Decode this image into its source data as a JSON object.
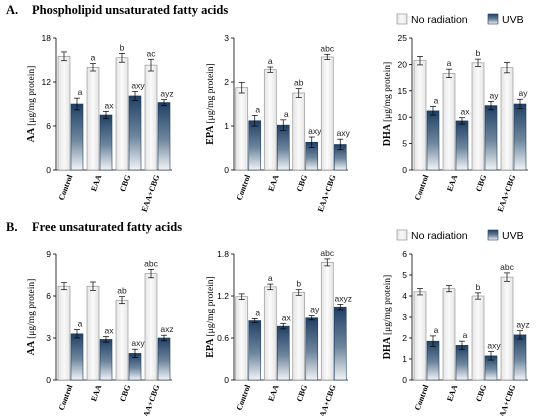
{
  "sections": [
    {
      "label": "A.",
      "title": "Phospholipid unsaturated fatty acids"
    },
    {
      "label": "B.",
      "title": "Free unsaturated fatty acids"
    }
  ],
  "legend": [
    {
      "name": "No radiation",
      "color": "#ececec"
    },
    {
      "name": "UVB",
      "color": "#1f3f63"
    }
  ],
  "chart_data": [
    {
      "type": "bar",
      "panel": "A",
      "ylabel_bold": "AA",
      "ylabel_unit": "[μg/mg protein]",
      "categories": [
        "Control",
        "EAA",
        "CBG",
        "EAA+CBG"
      ],
      "ylim": [
        0,
        18
      ],
      "yticks": [
        "0",
        "6",
        "12",
        "18"
      ],
      "series": [
        {
          "name": "No radiation",
          "values": [
            15.5,
            14.0,
            15.3,
            14.3
          ],
          "errors": [
            0.6,
            0.5,
            0.6,
            0.8
          ],
          "labels": [
            "",
            "a",
            "b",
            "ac"
          ]
        },
        {
          "name": "UVB",
          "values": [
            9.0,
            7.5,
            10.1,
            9.2
          ],
          "errors": [
            0.8,
            0.5,
            0.6,
            0.4
          ],
          "labels": [
            "a",
            "ax",
            "axy",
            "ayz"
          ]
        }
      ]
    },
    {
      "type": "bar",
      "panel": "A",
      "ylabel_bold": "EPA",
      "ylabel_unit": "[μg/mg protein]",
      "categories": [
        "Control",
        "EAA",
        "CBG",
        "EAA+CBG"
      ],
      "ylim": [
        0,
        3
      ],
      "yticks": [
        "0",
        "1",
        "2",
        "3"
      ],
      "series": [
        {
          "name": "No radiation",
          "values": [
            1.87,
            2.28,
            1.75,
            2.57
          ],
          "errors": [
            0.12,
            0.06,
            0.1,
            0.06
          ],
          "labels": [
            "",
            "a",
            "ab",
            "abc"
          ]
        },
        {
          "name": "UVB",
          "values": [
            1.12,
            1.02,
            0.63,
            0.58
          ],
          "errors": [
            0.12,
            0.12,
            0.12,
            0.12
          ],
          "labels": [
            "a",
            "a",
            "axy",
            "axy"
          ]
        }
      ]
    },
    {
      "type": "bar",
      "panel": "A",
      "ylabel_bold": "DHA",
      "ylabel_unit": "[μg/mg protein]",
      "categories": [
        "Control",
        "EAA",
        "CBG",
        "EAA+CBG"
      ],
      "ylim": [
        0,
        25
      ],
      "yticks": [
        "0",
        "5",
        "10",
        "15",
        "20",
        "25"
      ],
      "series": [
        {
          "name": "No radiation",
          "values": [
            20.7,
            18.3,
            20.3,
            19.4
          ],
          "errors": [
            0.8,
            0.8,
            0.7,
            1.0
          ],
          "labels": [
            "",
            "a",
            "b",
            ""
          ]
        },
        {
          "name": "UVB",
          "values": [
            11.2,
            9.3,
            12.2,
            12.5
          ],
          "errors": [
            0.8,
            0.6,
            0.8,
            0.9
          ],
          "labels": [
            "a",
            "ax",
            "ay",
            "ay"
          ]
        }
      ]
    },
    {
      "type": "bar",
      "panel": "B",
      "ylabel_bold": "AA",
      "ylabel_unit": "[μg/mg protein]",
      "categories": [
        "Control",
        "EAA",
        "CBG",
        "EAA+CBG"
      ],
      "ylim": [
        0,
        9
      ],
      "yticks": [
        "0",
        "3",
        "6",
        "9"
      ],
      "series": [
        {
          "name": "No radiation",
          "values": [
            6.7,
            6.7,
            5.7,
            7.6
          ],
          "errors": [
            0.25,
            0.3,
            0.25,
            0.3
          ],
          "labels": [
            "",
            "",
            "ab",
            "abc"
          ]
        },
        {
          "name": "UVB",
          "values": [
            3.3,
            2.9,
            1.9,
            3.0
          ],
          "errors": [
            0.3,
            0.2,
            0.3,
            0.2
          ],
          "labels": [
            "a",
            "ax",
            "axy",
            "axz"
          ]
        }
      ]
    },
    {
      "type": "bar",
      "panel": "B",
      "ylabel_bold": "EPA",
      "ylabel_unit": "[μg/mg protein]",
      "categories": [
        "Control",
        "EAA",
        "CBG",
        "EAA+CBG"
      ],
      "ylim": [
        0,
        1.8
      ],
      "yticks": [
        "0",
        "0.6",
        "1.2",
        "1.8"
      ],
      "series": [
        {
          "name": "No radiation",
          "values": [
            1.19,
            1.33,
            1.25,
            1.68
          ],
          "errors": [
            0.04,
            0.04,
            0.04,
            0.05
          ],
          "labels": [
            "",
            "a",
            "b",
            "abc"
          ]
        },
        {
          "name": "UVB",
          "values": [
            0.85,
            0.77,
            0.89,
            1.04
          ],
          "errors": [
            0.03,
            0.04,
            0.03,
            0.04
          ],
          "labels": [
            "a",
            "ax",
            "ay",
            "axyz"
          ]
        }
      ]
    },
    {
      "type": "bar",
      "panel": "B",
      "ylabel_bold": "DHA",
      "ylabel_unit": "[μg/mg protein]",
      "categories": [
        "Control",
        "EAA",
        "CBG",
        "EAA+CBG"
      ],
      "ylim": [
        0,
        6
      ],
      "yticks": [
        "0",
        "1",
        "2",
        "3",
        "4",
        "5",
        "6"
      ],
      "series": [
        {
          "name": "No radiation",
          "values": [
            4.2,
            4.35,
            4.0,
            4.9
          ],
          "errors": [
            0.15,
            0.15,
            0.15,
            0.2
          ],
          "labels": [
            "",
            "",
            "b",
            "abc"
          ]
        },
        {
          "name": "UVB",
          "values": [
            1.85,
            1.65,
            1.15,
            2.15
          ],
          "errors": [
            0.25,
            0.2,
            0.2,
            0.2
          ],
          "labels": [
            "a",
            "a",
            "axy",
            "ayz"
          ]
        }
      ]
    }
  ]
}
